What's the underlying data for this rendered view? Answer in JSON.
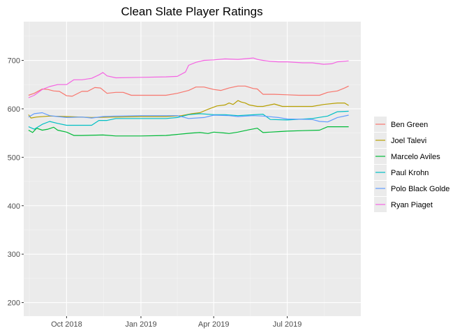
{
  "chart_data": {
    "type": "line",
    "title": "Clean Slate Player Ratings",
    "xlabel": "",
    "ylabel": "",
    "x_ticks": [
      "Oct 2018",
      "Jan 2019",
      "Apr 2019",
      "Jul 2019"
    ],
    "y_ticks": [
      200,
      300,
      400,
      500,
      600,
      700
    ],
    "xlim": [
      "2018-08-09",
      "2019-09-30"
    ],
    "ylim": [
      172,
      780
    ],
    "grid": true,
    "legend_position": "right",
    "series": [
      {
        "name": "Ben Green",
        "color": "#F8766D",
        "x": [
          "2018-08-15",
          "2018-08-22",
          "2018-09-01",
          "2018-09-08",
          "2018-09-15",
          "2018-09-22",
          "2018-10-01",
          "2018-10-08",
          "2018-10-20",
          "2018-10-27",
          "2018-11-05",
          "2018-11-12",
          "2018-11-20",
          "2018-12-01",
          "2018-12-10",
          "2018-12-20",
          "2019-01-01",
          "2019-01-15",
          "2019-02-01",
          "2019-02-15",
          "2019-03-01",
          "2019-03-10",
          "2019-03-20",
          "2019-04-01",
          "2019-04-10",
          "2019-04-20",
          "2019-05-01",
          "2019-05-10",
          "2019-05-20",
          "2019-05-25",
          "2019-06-01",
          "2019-06-15",
          "2019-07-01",
          "2019-07-15",
          "2019-08-01",
          "2019-08-10",
          "2019-08-20",
          "2019-09-01",
          "2019-09-10",
          "2019-09-15"
        ],
        "values": [
          628,
          632,
          641,
          640,
          637,
          636,
          627,
          626,
          636,
          636,
          644,
          643,
          632,
          634,
          634,
          628,
          628,
          628,
          628,
          632,
          638,
          645,
          645,
          640,
          638,
          643,
          647,
          647,
          642,
          641,
          630,
          630,
          629,
          628,
          628,
          628,
          634,
          637,
          643,
          647
        ]
      },
      {
        "name": "Joel Talevi",
        "color": "#B79F00",
        "x": [
          "2018-08-15",
          "2018-08-18",
          "2018-08-25",
          "2018-09-10",
          "2018-10-01",
          "2018-11-01",
          "2018-12-01",
          "2019-01-01",
          "2019-02-01",
          "2019-02-20",
          "2019-03-05",
          "2019-03-15",
          "2019-03-25",
          "2019-04-05",
          "2019-04-15",
          "2019-04-20",
          "2019-04-25",
          "2019-05-01",
          "2019-05-05",
          "2019-05-10",
          "2019-05-15",
          "2019-05-25",
          "2019-06-01",
          "2019-06-15",
          "2019-06-25",
          "2019-07-10",
          "2019-08-01",
          "2019-08-15",
          "2019-09-01",
          "2019-09-10",
          "2019-09-15"
        ],
        "values": [
          588,
          581,
          583,
          585,
          584,
          582,
          583,
          584,
          584,
          586,
          590,
          592,
          599,
          606,
          608,
          612,
          609,
          617,
          614,
          612,
          608,
          605,
          605,
          610,
          605,
          605,
          605,
          609,
          612,
          612,
          607
        ]
      },
      {
        "name": "Marcelo Aviles",
        "color": "#00BA38",
        "x": [
          "2018-08-15",
          "2018-08-20",
          "2018-08-25",
          "2018-09-01",
          "2018-09-08",
          "2018-09-15",
          "2018-09-20",
          "2018-10-01",
          "2018-10-10",
          "2018-10-20",
          "2018-11-15",
          "2018-12-01",
          "2019-01-01",
          "2019-02-01",
          "2019-02-20",
          "2019-03-05",
          "2019-03-15",
          "2019-03-25",
          "2019-04-01",
          "2019-04-15",
          "2019-04-20",
          "2019-05-01",
          "2019-05-15",
          "2019-05-25",
          "2019-06-01",
          "2019-06-10",
          "2019-06-20",
          "2019-07-01",
          "2019-07-20",
          "2019-08-10",
          "2019-08-20",
          "2019-09-01",
          "2019-09-15"
        ],
        "values": [
          556,
          551,
          560,
          556,
          558,
          562,
          556,
          552,
          545,
          545,
          546,
          544,
          544,
          545,
          548,
          550,
          551,
          549,
          552,
          550,
          549,
          552,
          557,
          560,
          551,
          552,
          553,
          554,
          555,
          556,
          563,
          563,
          563
        ]
      },
      {
        "name": "Paul Krohn",
        "color": "#00BFC4",
        "x": [
          "2018-08-15",
          "2018-08-22",
          "2018-09-01",
          "2018-09-10",
          "2018-09-20",
          "2018-10-01",
          "2018-10-15",
          "2018-11-01",
          "2018-11-10",
          "2018-11-20",
          "2018-12-01",
          "2019-01-01",
          "2019-02-01",
          "2019-02-15",
          "2019-03-01",
          "2019-03-15",
          "2019-04-01",
          "2019-04-15",
          "2019-05-01",
          "2019-06-01",
          "2019-06-10",
          "2019-07-01",
          "2019-08-01",
          "2019-08-20",
          "2019-09-01",
          "2019-09-15"
        ],
        "values": [
          563,
          558,
          568,
          574,
          570,
          566,
          566,
          566,
          576,
          576,
          580,
          580,
          580,
          582,
          588,
          590,
          588,
          588,
          586,
          589,
          578,
          577,
          580,
          585,
          594,
          595
        ]
      },
      {
        "name": "Polo Black Golde",
        "color": "#619CFF",
        "x": [
          "2018-08-15",
          "2018-08-22",
          "2018-09-01",
          "2018-09-10",
          "2018-09-20",
          "2018-10-01",
          "2018-10-20",
          "2018-11-01",
          "2018-11-15",
          "2018-12-01",
          "2019-01-01",
          "2019-02-01",
          "2019-02-15",
          "2019-03-01",
          "2019-03-20",
          "2019-04-01",
          "2019-04-20",
          "2019-05-01",
          "2019-05-20",
          "2019-06-01",
          "2019-06-20",
          "2019-07-01",
          "2019-08-01",
          "2019-08-10",
          "2019-08-20",
          "2019-09-01",
          "2019-09-15"
        ],
        "values": [
          583,
          590,
          592,
          586,
          584,
          582,
          583,
          581,
          584,
          585,
          586,
          586,
          586,
          580,
          582,
          587,
          586,
          584,
          586,
          585,
          582,
          579,
          578,
          574,
          573,
          582,
          587
        ]
      },
      {
        "name": "Ryan Piaget",
        "color": "#F564E3",
        "x": [
          "2018-08-15",
          "2018-08-22",
          "2018-09-01",
          "2018-09-10",
          "2018-09-20",
          "2018-10-01",
          "2018-10-10",
          "2018-10-20",
          "2018-11-01",
          "2018-11-10",
          "2018-11-15",
          "2018-11-20",
          "2018-12-01",
          "2019-01-01",
          "2019-02-01",
          "2019-02-15",
          "2019-02-25",
          "2019-03-01",
          "2019-03-10",
          "2019-03-20",
          "2019-04-01",
          "2019-04-15",
          "2019-05-01",
          "2019-05-20",
          "2019-05-25",
          "2019-06-01",
          "2019-06-10",
          "2019-06-20",
          "2019-07-01",
          "2019-07-20",
          "2019-08-01",
          "2019-08-15",
          "2019-08-25",
          "2019-09-01",
          "2019-09-15"
        ],
        "values": [
          623,
          628,
          640,
          646,
          650,
          650,
          660,
          660,
          663,
          670,
          675,
          668,
          664,
          665,
          666,
          667,
          676,
          690,
          696,
          700,
          701,
          703,
          702,
          705,
          702,
          700,
          698,
          697,
          697,
          695,
          695,
          692,
          693,
          697,
          699
        ]
      }
    ]
  }
}
